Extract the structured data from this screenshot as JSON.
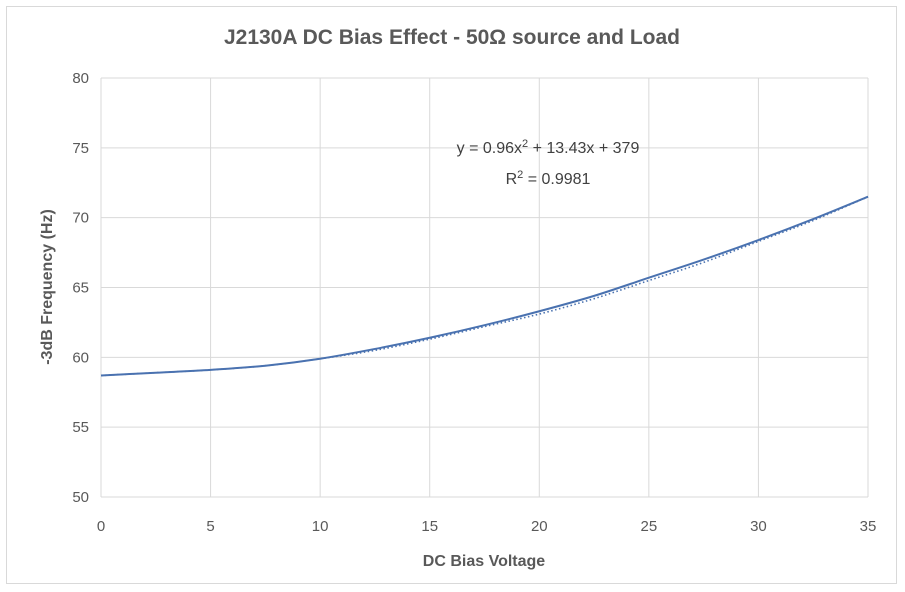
{
  "chart_data": {
    "type": "line",
    "title": "J2130A DC Bias Effect - 50Ω source and Load",
    "xlabel": "DC Bias Voltage",
    "ylabel": "-3dB Frequency (Hz)",
    "xlim": [
      0,
      35
    ],
    "ylim": [
      50,
      80
    ],
    "x_ticks": [
      0,
      5,
      10,
      15,
      20,
      25,
      30,
      35
    ],
    "y_ticks": [
      50,
      55,
      60,
      65,
      70,
      75,
      80
    ],
    "grid": true,
    "legend": "none",
    "series": [
      {
        "style": "solid",
        "color": "#4a72b0",
        "x": [
          0,
          2.5,
          5,
          7.5,
          10,
          12.5,
          15,
          17.5,
          20,
          22.5,
          25,
          27.5,
          30,
          32.5,
          35
        ],
        "y": [
          58.7,
          58.9,
          59.1,
          59.4,
          59.9,
          60.6,
          61.4,
          62.3,
          63.3,
          64.4,
          65.7,
          67.0,
          68.4,
          69.9,
          71.5
        ]
      },
      {
        "style": "dotted",
        "color": "#4a72b0",
        "x": [
          0,
          2.5,
          5,
          7.5,
          10,
          12.5,
          15,
          17.5,
          20,
          22.5,
          25,
          27.5,
          30,
          32.5,
          35
        ],
        "y": [
          58.7,
          58.9,
          59.1,
          59.4,
          59.9,
          60.5,
          61.3,
          62.2,
          63.1,
          64.2,
          65.5,
          66.8,
          68.3,
          69.8,
          71.5
        ]
      }
    ],
    "trendline_equation": {
      "line1_prefix": "y = 0.96x",
      "line1_sup": "2",
      "line1_suffix": " + 13.43x + 379",
      "line2_prefix": "R",
      "line2_sup": "2",
      "line2_suffix": " = 0.9981"
    }
  }
}
